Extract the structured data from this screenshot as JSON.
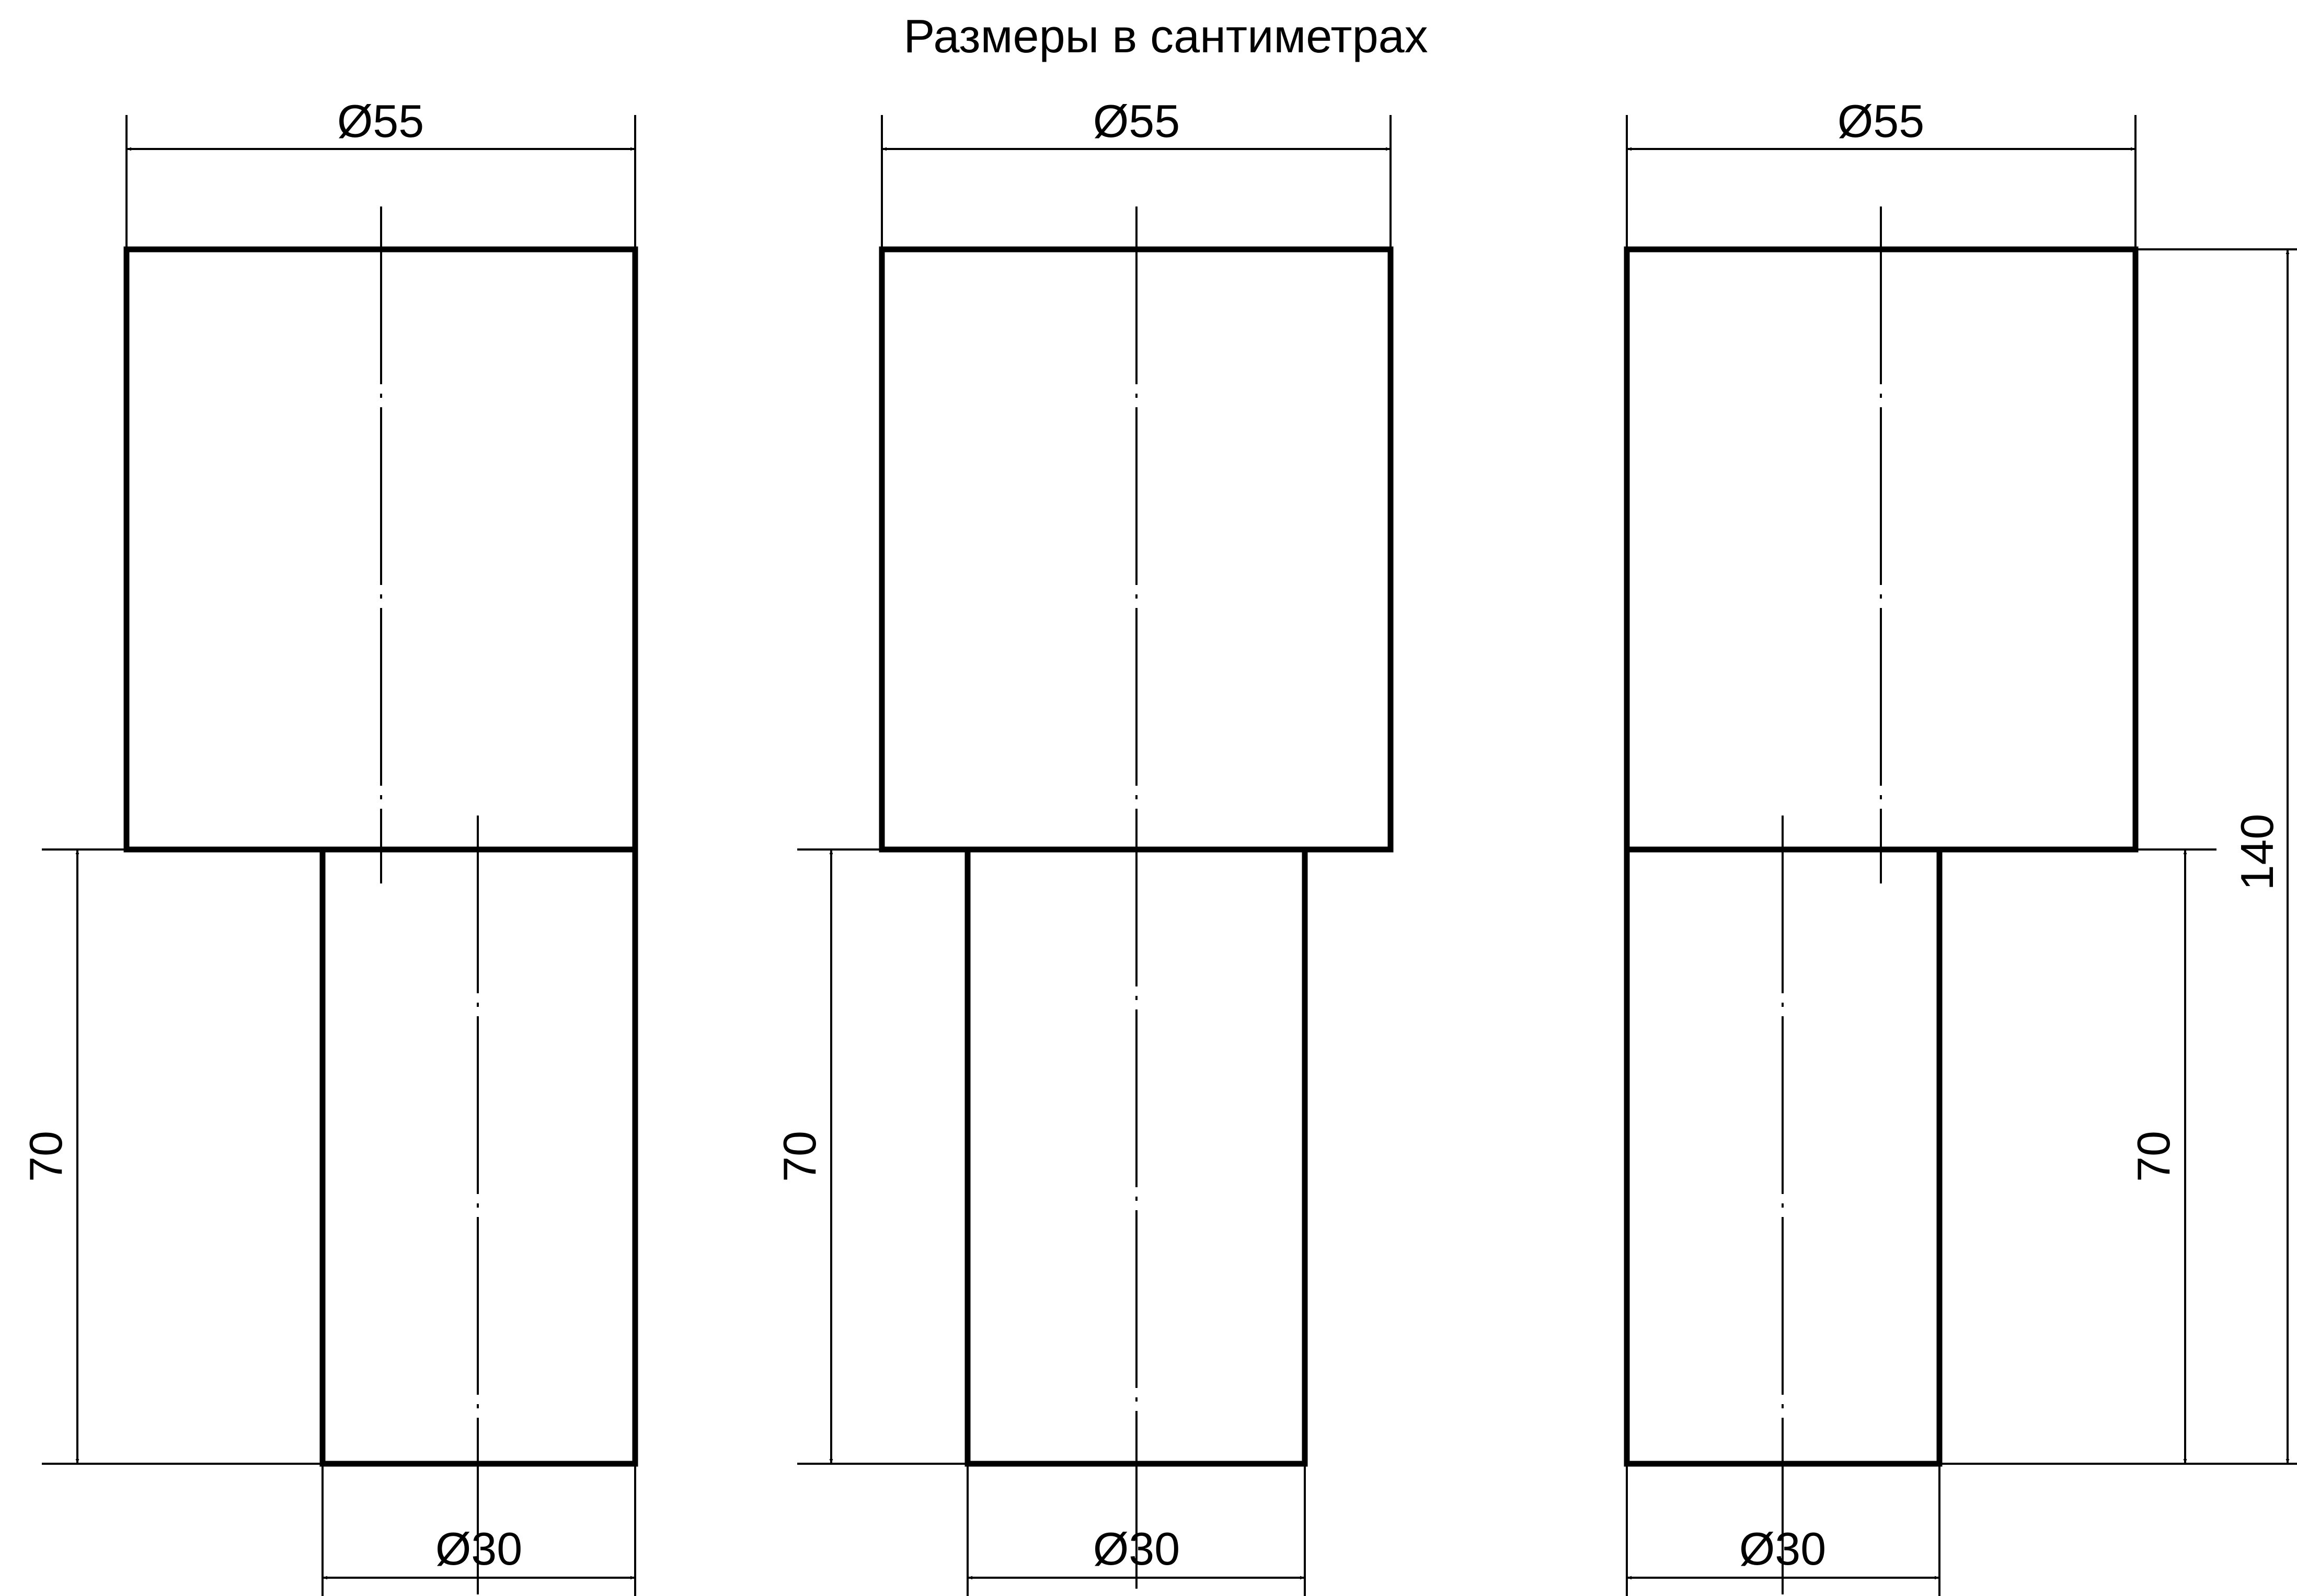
{
  "title": "Размеры в сантиметрах",
  "figures": [
    {
      "top_diameter": "Ø55",
      "bottom_diameter": "Ø30",
      "height_70": "70"
    },
    {
      "top_diameter": "Ø55",
      "bottom_diameter": "Ø30",
      "height_70": "70"
    },
    {
      "top_diameter": "Ø55",
      "bottom_diameter": "Ø30",
      "height_70": "70",
      "height_total": "140"
    }
  ]
}
